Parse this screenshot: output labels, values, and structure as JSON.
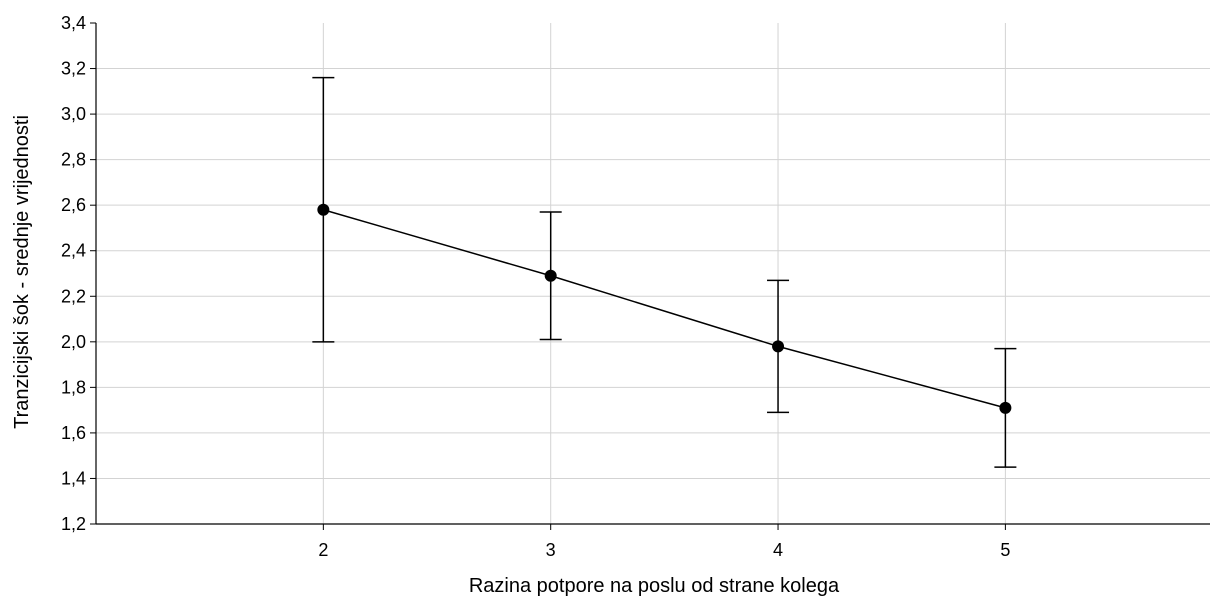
{
  "chart_data": {
    "type": "line",
    "title": "",
    "xlabel": "Razina potpore na poslu od strane kolega",
    "ylabel": "Tranzicijski šok - srednje vrijednosti",
    "x": [
      2,
      3,
      4,
      5
    ],
    "x_tick_labels": [
      "2",
      "3",
      "4",
      "5"
    ],
    "xlim": [
      1,
      5.9
    ],
    "ylim": [
      1.2,
      3.4
    ],
    "y_ticks": [
      1.2,
      1.4,
      1.6,
      1.8,
      2.0,
      2.2,
      2.4,
      2.6,
      2.8,
      3.0,
      3.2,
      3.4
    ],
    "y_tick_labels": [
      "1,2",
      "1,4",
      "1,6",
      "1,8",
      "2,0",
      "2,2",
      "2,4",
      "2,6",
      "2,8",
      "3,0",
      "3,2",
      "3,4"
    ],
    "grid": true,
    "legend": false,
    "series": [
      {
        "values": [
          2.58,
          2.29,
          1.98,
          1.71
        ],
        "error_lower": [
          2.0,
          2.01,
          1.69,
          1.45
        ],
        "error_upper": [
          3.16,
          2.57,
          2.27,
          1.97
        ]
      }
    ],
    "colors": {
      "line": "#000000",
      "grid": "#d3d3d3",
      "axis": "#000000",
      "marker": "#000000"
    }
  }
}
